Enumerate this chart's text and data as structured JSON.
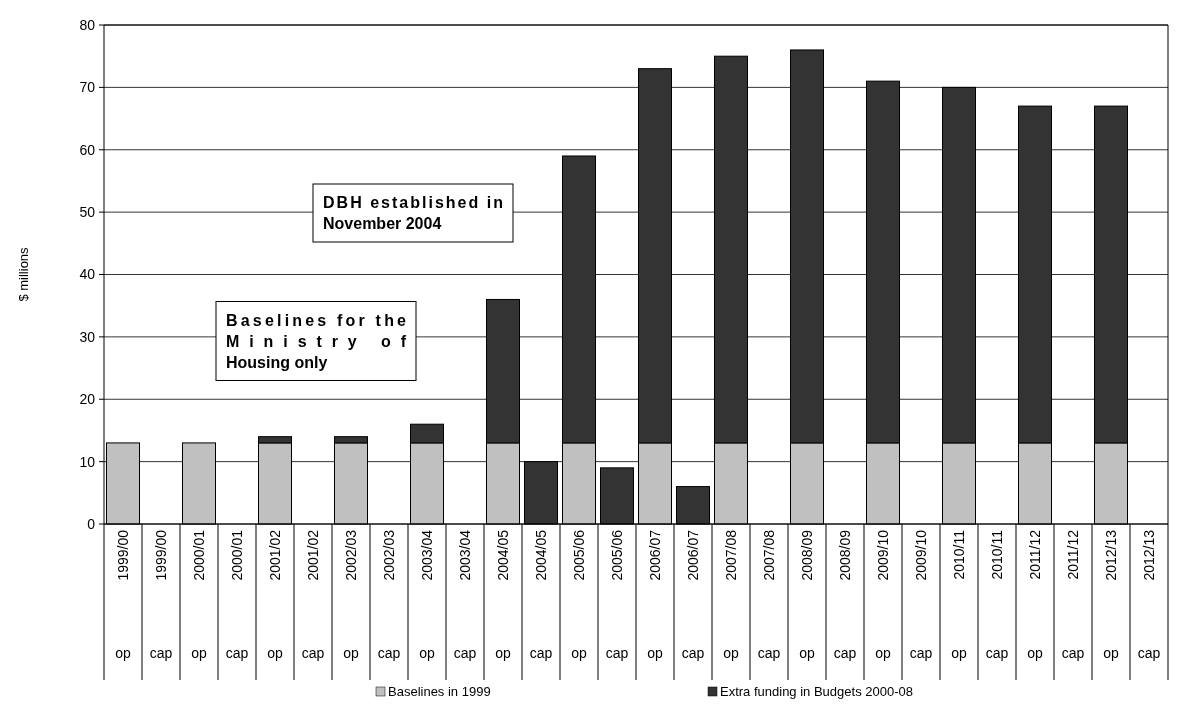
{
  "chart_data": {
    "type": "bar",
    "stacked": true,
    "ylabel": "$ millions",
    "categories": [
      "1999/00 op",
      "1999/00 cap",
      "2000/01 op",
      "2000/01 cap",
      "2001/02 op",
      "2001/02 cap",
      "2002/03 op",
      "2002/03 cap",
      "2003/04 op",
      "2003/04 cap",
      "2004/05 op",
      "2004/05 cap",
      "2005/06 op",
      "2005/06 cap",
      "2006/07 op",
      "2006/07 cap",
      "2007/08 op",
      "2007/08 cap",
      "2008/09 op",
      "2008/09 cap",
      "2009/10 op",
      "2009/10 cap",
      "2010/11 op",
      "2010/11 cap",
      "2011/12 op",
      "2011/12 cap",
      "2012/13 op",
      "2012/13 cap"
    ],
    "series": [
      {
        "name": "Baselines in 1999",
        "color": "#c0c0c0",
        "values": [
          13,
          0,
          13,
          0,
          13,
          0,
          13,
          0,
          13,
          0,
          13,
          0,
          13,
          0,
          13,
          0,
          13,
          0,
          13,
          0,
          13,
          0,
          13,
          0,
          13,
          0,
          13,
          0
        ]
      },
      {
        "name": "Extra funding in Budgets 2000-08",
        "color": "#333333",
        "values": [
          0,
          0,
          0,
          0,
          1,
          0,
          1,
          0,
          3,
          0,
          23,
          10,
          46,
          9,
          60,
          6,
          62,
          0,
          63,
          0,
          58,
          0,
          57,
          0,
          54,
          0,
          54,
          0
        ]
      }
    ],
    "ylim": [
      0,
      80
    ],
    "yticks": [
      0,
      10,
      20,
      30,
      40,
      50,
      60,
      70,
      80
    ],
    "grid": "y",
    "legend": "bottom",
    "annotations": [
      "Baselines for the Ministry of Housing only",
      "DBH established in November 2004"
    ]
  }
}
